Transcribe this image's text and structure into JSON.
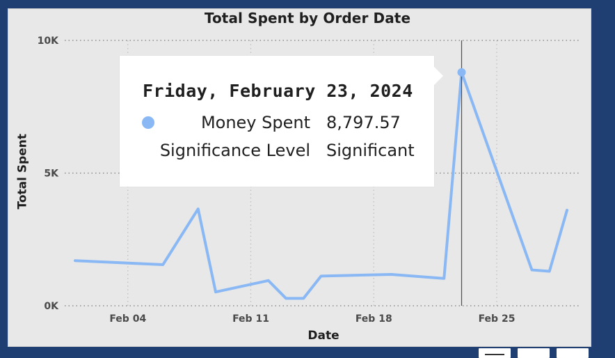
{
  "chart_data": {
    "type": "line",
    "title": "Total Spent by Order Date",
    "xlabel": "Date",
    "ylabel": "Total Spent",
    "ylim": [
      0,
      10000
    ],
    "y_ticks": [
      "0K",
      "5K",
      "10K"
    ],
    "x_ticks": [
      "Feb 04",
      "Feb 11",
      "Feb 18",
      "Feb 25"
    ],
    "x_tick_dates": [
      "2024-02-04",
      "2024-02-11",
      "2024-02-18",
      "2024-02-25"
    ],
    "grid": true,
    "series": [
      {
        "name": "Money Spent",
        "color": "#89b8f4",
        "points": [
          {
            "date": "2024-02-01",
            "value": 1700
          },
          {
            "date": "2024-02-06",
            "value": 1550
          },
          {
            "date": "2024-02-08",
            "value": 3650
          },
          {
            "date": "2024-02-09",
            "value": 520
          },
          {
            "date": "2024-02-12",
            "value": 950
          },
          {
            "date": "2024-02-13",
            "value": 280
          },
          {
            "date": "2024-02-14",
            "value": 280
          },
          {
            "date": "2024-02-15",
            "value": 1120
          },
          {
            "date": "2024-02-19",
            "value": 1180
          },
          {
            "date": "2024-02-22",
            "value": 1030
          },
          {
            "date": "2024-02-23",
            "value": 8797.57
          },
          {
            "date": "2024-02-27",
            "value": 1350
          },
          {
            "date": "2024-02-28",
            "value": 1300
          },
          {
            "date": "2024-02-29",
            "value": 3600
          }
        ]
      }
    ],
    "highlight": {
      "date": "2024-02-23",
      "value": 8797.57
    }
  },
  "tooltip": {
    "title": "Friday, February 23, 2024",
    "rows": [
      {
        "label": "Money Spent",
        "value": "8,797.57"
      },
      {
        "label": "Significance Level",
        "value": "Significant"
      }
    ]
  }
}
